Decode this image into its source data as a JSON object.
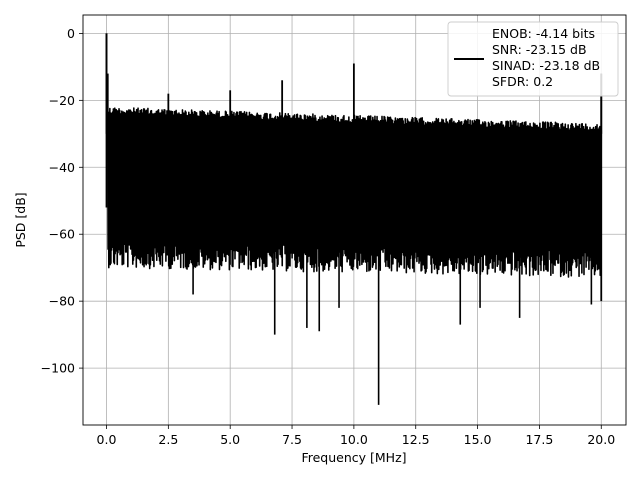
{
  "chart_data": {
    "type": "line",
    "xlabel": "Frequency [MHz]",
    "ylabel": "PSD [dB]",
    "xlim": [
      -0.95,
      21.0
    ],
    "ylim": [
      -117,
      5.5
    ],
    "xticks": [
      0.0,
      2.5,
      5.0,
      7.5,
      10.0,
      12.5,
      15.0,
      17.5,
      20.0
    ],
    "xtick_labels": [
      "0.0",
      "2.5",
      "5.0",
      "7.5",
      "10.0",
      "12.5",
      "15.0",
      "17.5",
      "20.0"
    ],
    "yticks": [
      0,
      -20,
      -40,
      -60,
      -80,
      -100
    ],
    "ytick_labels": [
      "0",
      "−20",
      "−40",
      "−60",
      "−80",
      "−100"
    ],
    "grid": true,
    "legend_position": "top-right",
    "series_color": "#000000",
    "legend_lines": [
      "ENOB: -4.14 bits",
      "SNR: -23.15 dB",
      "SINAD: -23.18 dB",
      "SFDR: 0.2"
    ],
    "noise_band": {
      "x_range": [
        0.05,
        20.0
      ],
      "upper_start": -22,
      "upper_end": -27,
      "lower_start": -62,
      "lower_end": -65
    },
    "spikes": [
      {
        "x": 0.0,
        "y": 0
      },
      {
        "x": 0.05,
        "y": -12
      },
      {
        "x": 2.5,
        "y": -18
      },
      {
        "x": 5.0,
        "y": -17
      },
      {
        "x": 7.1,
        "y": -14
      },
      {
        "x": 10.0,
        "y": -9
      },
      {
        "x": 20.0,
        "y": -12
      }
    ],
    "dips": [
      {
        "x": 3.5,
        "y": -78
      },
      {
        "x": 6.8,
        "y": -90
      },
      {
        "x": 8.1,
        "y": -88
      },
      {
        "x": 8.6,
        "y": -89
      },
      {
        "x": 9.4,
        "y": -82
      },
      {
        "x": 11.0,
        "y": -111
      },
      {
        "x": 14.3,
        "y": -87
      },
      {
        "x": 15.1,
        "y": -82
      },
      {
        "x": 16.7,
        "y": -85
      },
      {
        "x": 19.6,
        "y": -81
      }
    ]
  }
}
